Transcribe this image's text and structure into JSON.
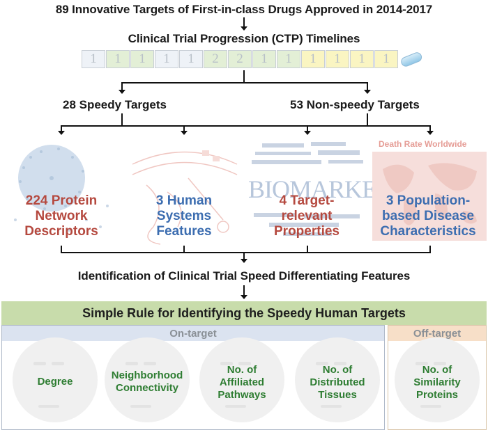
{
  "header": {
    "title": "89 Innovative Targets of First-in-class Drugs Approved in 2014-2017",
    "subtitle": "Clinical Trial Progression (CTP) Timelines"
  },
  "ctp": {
    "cells": [
      {
        "value": "1",
        "color": "#eef2f7"
      },
      {
        "value": "1",
        "color": "#e3efd6"
      },
      {
        "value": "1",
        "color": "#e3efd6"
      },
      {
        "value": "1",
        "color": "#eef2f7"
      },
      {
        "value": "1",
        "color": "#eef2f7"
      },
      {
        "value": "2",
        "color": "#e3efd6"
      },
      {
        "value": "2",
        "color": "#e3efd6"
      },
      {
        "value": "1",
        "color": "#e3efd6"
      },
      {
        "value": "1",
        "color": "#e3efd6"
      },
      {
        "value": "1",
        "color": "#faf5c2"
      },
      {
        "value": "1",
        "color": "#faf5c2"
      },
      {
        "value": "1",
        "color": "#faf5c2"
      },
      {
        "value": "1",
        "color": "#faf5c2"
      }
    ]
  },
  "groups": {
    "speedy": "28 Speedy Targets",
    "non_speedy": "53 Non-speedy Targets"
  },
  "panels": [
    {
      "lines": [
        "224 Protein",
        "Network",
        "Descriptors"
      ],
      "color": "#b5493f",
      "watermark": "network-graph"
    },
    {
      "lines": [
        "3 Human",
        "Systems",
        "Features"
      ],
      "color": "#3c6db0",
      "watermark": "cell-sketch"
    },
    {
      "lines": [
        "4 Target-",
        "relevant",
        "Properties"
      ],
      "color": "#b5493f",
      "watermark": "word-cloud"
    },
    {
      "lines": [
        "3 Population-",
        "based Disease",
        "Characteristics"
      ],
      "color": "#3c6db0",
      "watermark": "world-map"
    }
  ],
  "panel_overlays": {
    "death_rate": "Death Rate Worldwide",
    "biomarker": "BIOMARKER"
  },
  "identification": "Identification of Clinical Trial Speed Differentiating Features",
  "rule": {
    "title": "Simple Rule for Identifying the Speedy Human Targets",
    "on_target": "On-target",
    "off_target": "Off-target",
    "features": [
      {
        "lines": [
          "Degree"
        ]
      },
      {
        "lines": [
          "Neighborhood",
          "Connectivity"
        ]
      },
      {
        "lines": [
          "No. of",
          "Affiliated",
          "Pathways"
        ]
      },
      {
        "lines": [
          "No. of",
          "Distributed",
          "Tissues"
        ]
      },
      {
        "lines": [
          "No. of",
          "Similarity",
          "Proteins"
        ]
      }
    ]
  }
}
